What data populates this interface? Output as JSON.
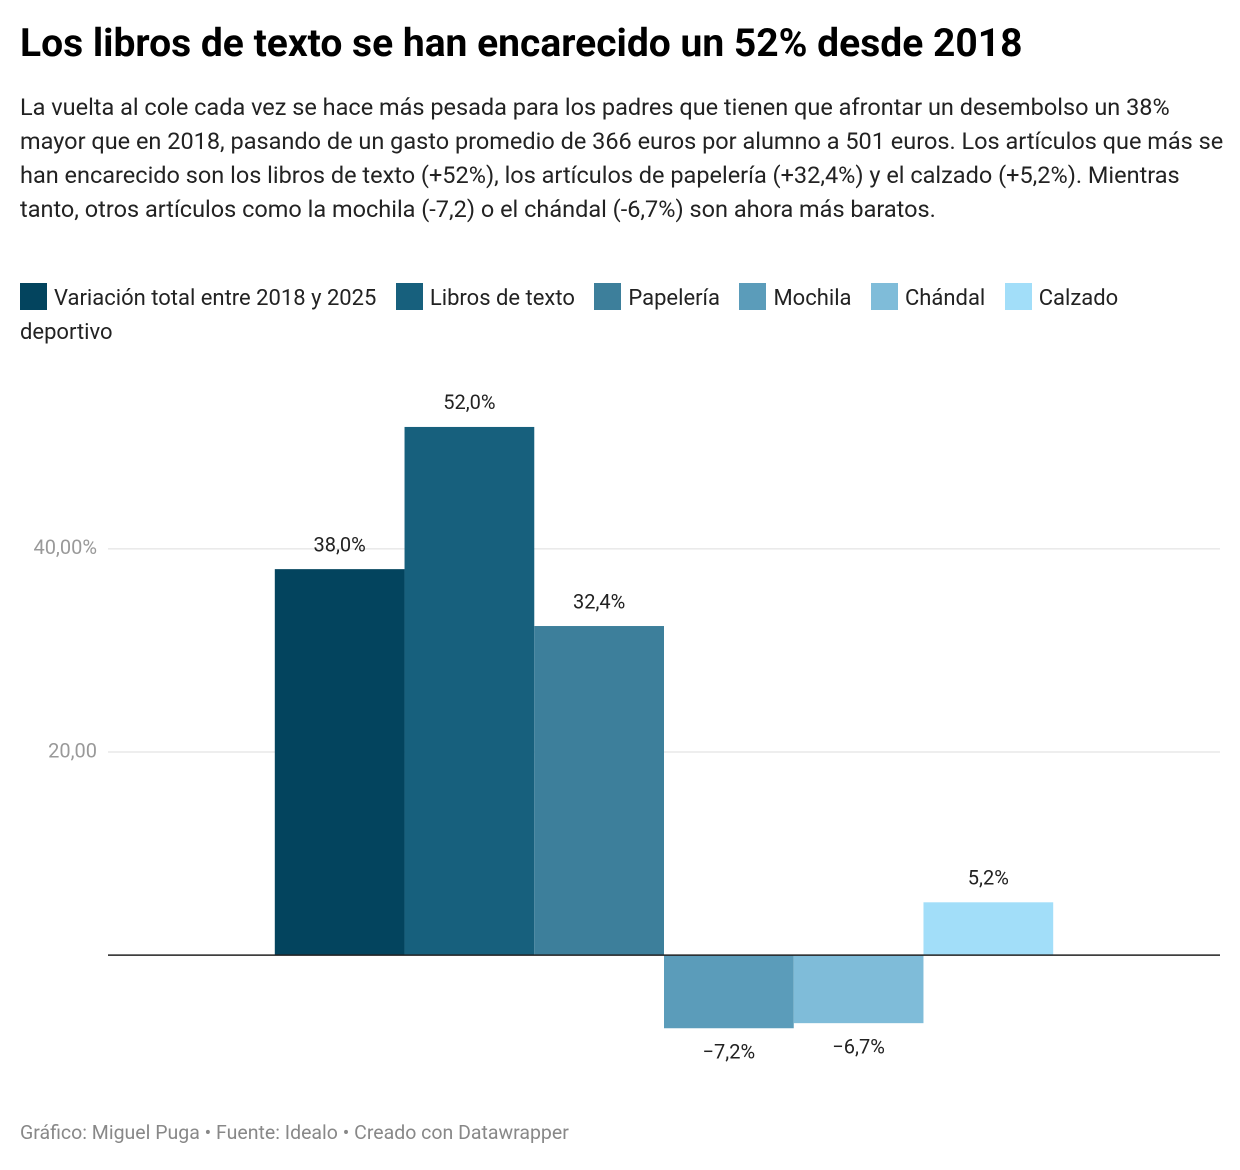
{
  "chart_data": {
    "type": "bar",
    "title": "Los libros de texto se han encarecido un 52% desde 2018",
    "subtitle": "La vuelta al cole cada vez se hace más pesada para los padres que tienen que afrontar un desembolso un 38% mayor que en 2018, pasando de un gasto promedio de 366 euros por alumno a 501 euros. Los artículos que más se han encarecido son los libros de texto (+52%), los artículos de papelería (+32,4%) y el calzado (+5,2%). Mientras tanto, otros artículos como la mochila (-7,2) o el chándal (-6,7%) son ahora más baratos.",
    "footer": "Gráfico: Miguel Puga • Fuente: Idealo • Creado con Datawrapper",
    "categories": [
      null
    ],
    "series": [
      {
        "name": "Variación total entre 2018 y 2025",
        "color": "#03445e",
        "values": [
          38.0
        ],
        "value_labels": [
          "38,0%"
        ]
      },
      {
        "name": "Libros de texto",
        "color": "#17607d",
        "values": [
          52.0
        ],
        "value_labels": [
          "52,0%"
        ]
      },
      {
        "name": "Papelería",
        "color": "#3d7f9b",
        "values": [
          32.4
        ],
        "value_labels": [
          "32,4%"
        ]
      },
      {
        "name": "Mochila",
        "color": "#5b9cba",
        "values": [
          -7.2
        ],
        "value_labels": [
          "−7,2%"
        ]
      },
      {
        "name": "Chándal",
        "color": "#7fbcd9",
        "values": [
          -6.7
        ],
        "value_labels": [
          "−6,7%"
        ]
      },
      {
        "name": "Calzado deportivo",
        "color": "#a2def9",
        "values": [
          5.2
        ],
        "value_labels": [
          "5,2%"
        ]
      }
    ],
    "ylim": [
      -12,
      58
    ],
    "yticks": [
      {
        "value": 20,
        "label": "20,00"
      },
      {
        "value": 40,
        "label": "40,00%"
      }
    ],
    "grid": true
  }
}
